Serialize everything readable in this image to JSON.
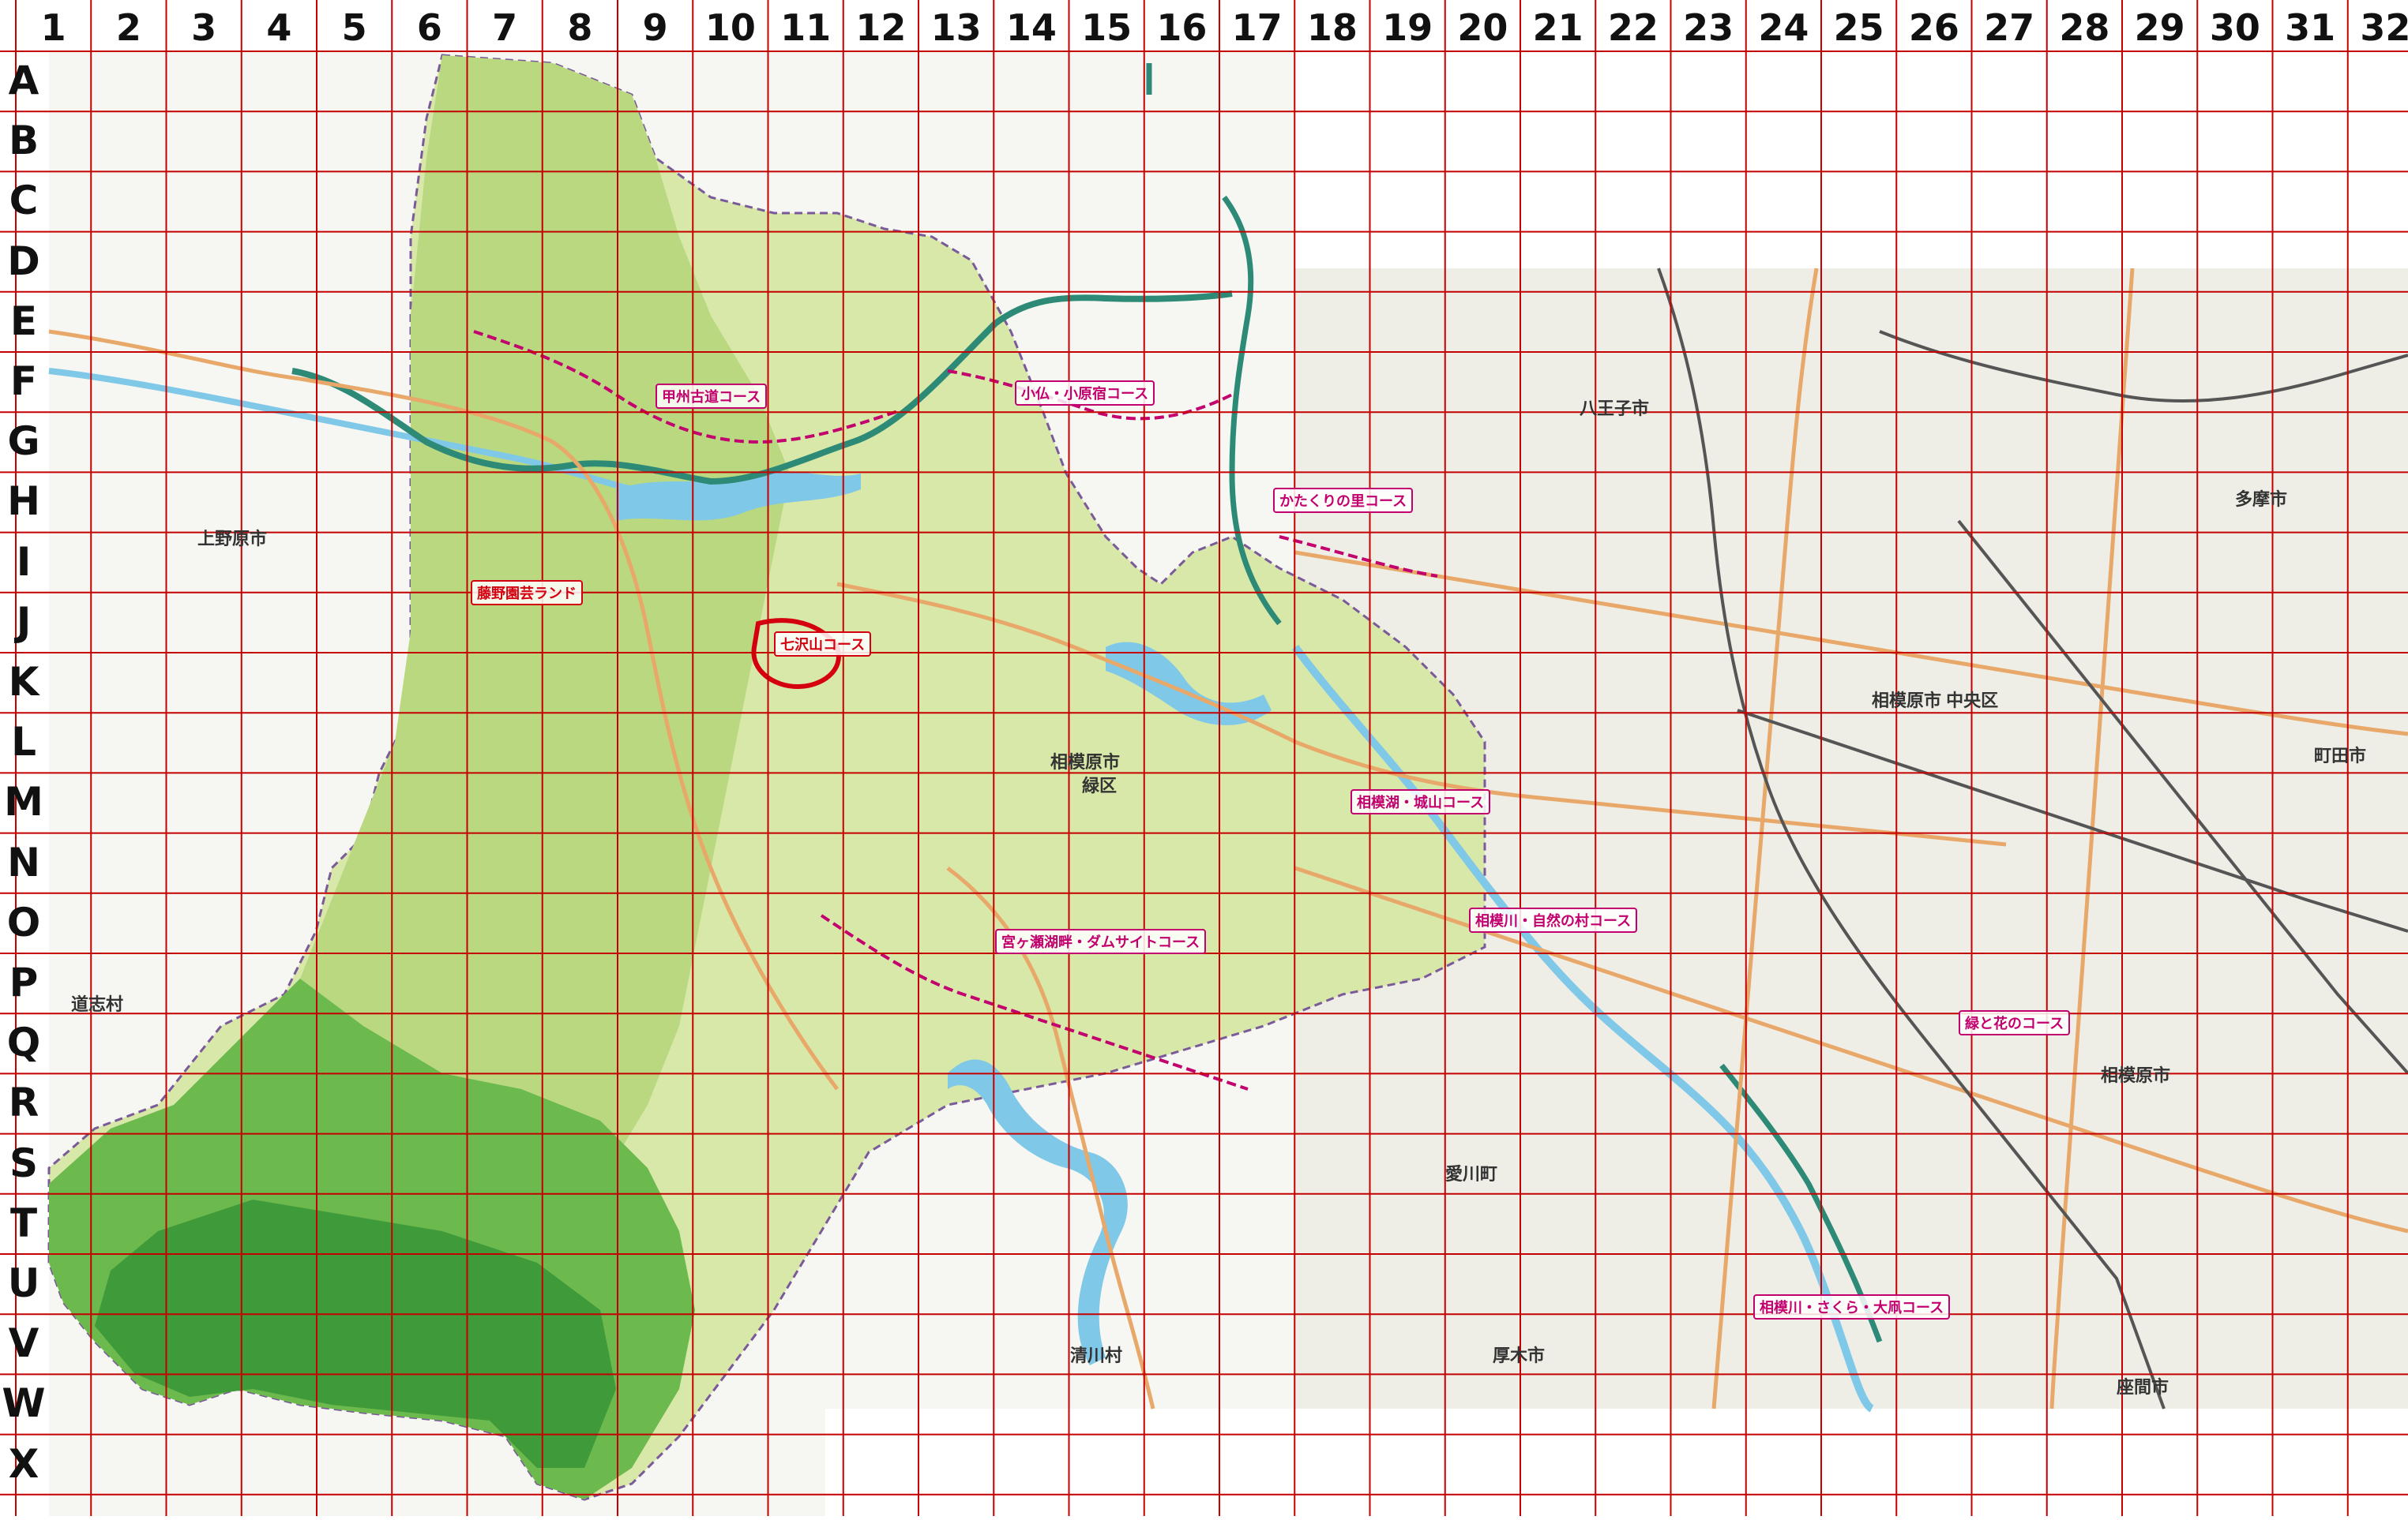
{
  "grid": {
    "columns": [
      "1",
      "2",
      "3",
      "4",
      "5",
      "6",
      "7",
      "8",
      "9",
      "10",
      "11",
      "12",
      "13",
      "14",
      "15",
      "16",
      "17",
      "18",
      "19",
      "20",
      "21",
      "22",
      "23",
      "24",
      "25",
      "26",
      "27",
      "28",
      "29",
      "30",
      "31",
      "32"
    ],
    "rows": [
      "A",
      "B",
      "C",
      "D",
      "E",
      "F",
      "G",
      "H",
      "I",
      "J",
      "K",
      "L",
      "M",
      "N",
      "O",
      "P",
      "Q",
      "R",
      "S",
      "T",
      "U",
      "V",
      "W",
      "X"
    ],
    "line_color": "#c40000"
  },
  "colors": {
    "forest_light": "#d8e8a8",
    "forest_mid": "#a7cf6a",
    "forest_dark": "#4da83c",
    "urban": "#efeee6",
    "paper": "#f6f7f2",
    "river": "#7fc8e8",
    "road": "#e8a86a",
    "highway": "#2d8a77",
    "course_pink": "#c2006e",
    "course_red": "#d4000f"
  },
  "labels": {
    "city_sagamihara": "相模原市",
    "ward_midori": "緑区",
    "town_aikawa": "愛川町",
    "village_kiyokawa": "清川村",
    "city_atsugi": "厚木市",
    "city_zama": "座間市",
    "city_machida": "町田市",
    "city_tama": "多摩市",
    "city_hachioji": "八王子市",
    "city_uenohara": "上野原市",
    "village_doshi": "道志村",
    "sagamihara_chuo": "相模原市 中央区",
    "sagamihara_minami": "相模原市"
  },
  "courses": {
    "koshu": "甲州古道コース",
    "oyama_kohara": "小仏・小原宿コース",
    "kadori": "かたくりの里コース",
    "nanayama": "七沢山コース",
    "tsukui_dam": "宮ヶ瀬湖畔・ダムサイトコース",
    "sagamiko": "相模湖・城山コース",
    "sagamigawa": "相模川・自然の村コース",
    "sagamigawa_ohashi": "相模川・さくら・大凧コース",
    "midori": "緑と花のコース",
    "fujino": "藤野園芸ランド"
  }
}
